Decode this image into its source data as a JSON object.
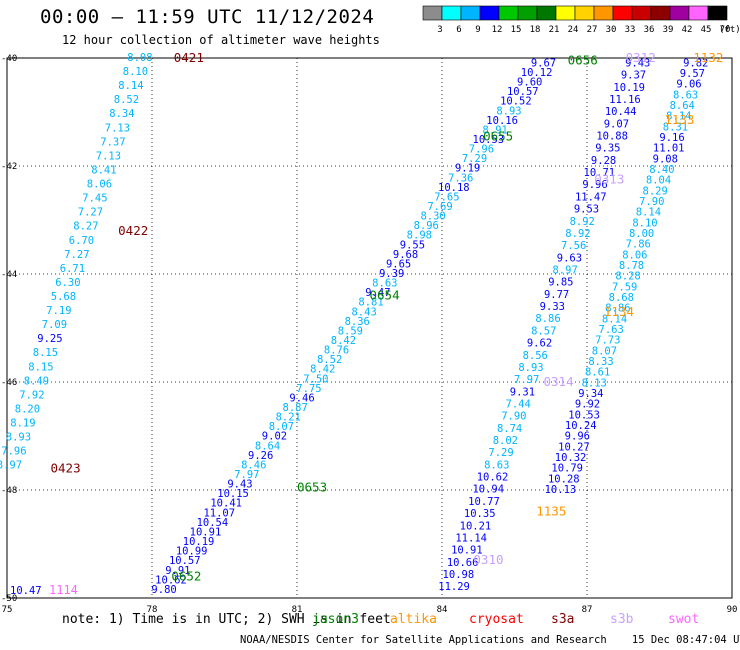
{
  "header": {
    "title": "00:00 – 11:59 UTC 11/12/2024",
    "subtitle": "12 hour collection of altimeter wave heights"
  },
  "legend": {
    "unit": "(ft)",
    "bins": [
      {
        "label": "3",
        "color": "#8c8c8c"
      },
      {
        "label": "6",
        "color": "#00ffff"
      },
      {
        "label": "9",
        "color": "#00b4ff"
      },
      {
        "label": "12",
        "color": "#0000ff"
      },
      {
        "label": "15",
        "color": "#00c800"
      },
      {
        "label": "18",
        "color": "#00a000"
      },
      {
        "label": "21",
        "color": "#007800"
      },
      {
        "label": "24",
        "color": "#ffff00"
      },
      {
        "label": "27",
        "color": "#ffd200"
      },
      {
        "label": "30",
        "color": "#ff9600"
      },
      {
        "label": "33",
        "color": "#ff0000"
      },
      {
        "label": "36",
        "color": "#c80000"
      },
      {
        "label": "39",
        "color": "#8c0000"
      },
      {
        "label": "42",
        "color": "#a000a0"
      },
      {
        "label": "45",
        "color": "#ff64ff"
      },
      {
        "label": "70",
        "color": "#000000"
      }
    ]
  },
  "map": {
    "lon_range": [
      75,
      90
    ],
    "lat_range": [
      -50,
      -40
    ],
    "x_ticks": [
      {
        "v": 75,
        "label": "75"
      },
      {
        "v": 78,
        "label": "78"
      },
      {
        "v": 81,
        "label": "81"
      },
      {
        "v": 84,
        "label": "84"
      },
      {
        "v": 87,
        "label": "87"
      },
      {
        "v": 90,
        "label": "90"
      }
    ],
    "y_ticks": [
      {
        "v": -40,
        "label": "-40"
      },
      {
        "v": -42,
        "label": "-42"
      },
      {
        "v": -44,
        "label": "-44"
      },
      {
        "v": -46,
        "label": "-46"
      },
      {
        "v": -48,
        "label": "-48"
      },
      {
        "v": -50,
        "label": "-50"
      }
    ],
    "colors": {
      "cyan": "#00b4ff",
      "blue": "#0000ff",
      "green": "#008000",
      "darkred": "#800000",
      "orange": "#ff9600",
      "pink": "#ff64ff",
      "lilac": "#c8a0ff"
    },
    "tracks": [
      {
        "name": "0421-0423",
        "lon": [
          77.75,
          75.05
        ],
        "lat": [
          -40.0,
          -47.55
        ],
        "start_lat": -40.0,
        "values": [
          "8.08",
          "8.10",
          "8.14",
          "8.52",
          "8.34",
          "7.13",
          "7.37",
          "7.13",
          "8.41",
          "8.06",
          "7.45",
          "7.27",
          "8.27",
          "6.70",
          "7.27",
          "6.71",
          "6.30",
          "5.68",
          "7.19",
          "7.09",
          "9.25",
          "8.15",
          "8.15",
          "8.49",
          "7.92",
          "8.20",
          "8.19",
          "8.93",
          "7.96",
          "8.97"
        ]
      },
      {
        "name": "0652-0656",
        "lon": [
          78.25,
          86.1
        ],
        "lat": [
          -49.85,
          -40.1
        ],
        "start_lat": -49.85,
        "values": [
          "9.80",
          "10.62",
          "9.91",
          "10.57",
          "10.99",
          "10.19",
          "10.91",
          "10.54",
          "11.07",
          "10.41",
          "10.15",
          "9.43",
          "7.97",
          "8.46",
          "9.26",
          "8.64",
          "9.02",
          "8.07",
          "8.21",
          "8.87",
          "9.46",
          "7.75",
          "7.50",
          "8.42",
          "8.52",
          "8.76",
          "8.42",
          "8.59",
          "8.36",
          "8.43",
          "8.81",
          "9.47",
          "8.63",
          "9.39",
          "9.65",
          "9.68",
          "9.55",
          "8.98",
          "8.96",
          "8.30",
          "7.69",
          "7.65",
          "10.18",
          "7.36",
          "9.19",
          "7.29",
          "7.96",
          "10.53",
          "8.91",
          "10.16",
          "8.93",
          "10.52",
          "10.57",
          "9.60",
          "10.12",
          "9.67"
        ]
      },
      {
        "name": "1131-1135",
        "lon": [
          88.05,
          84.25
        ],
        "lat": [
          -40.1,
          -49.8
        ],
        "start_lat": -40.1,
        "values": [
          "9.43",
          "9.37",
          "10.19",
          "11.16",
          "10.44",
          "9.07",
          "10.88",
          "9.35",
          "9.28",
          "10.71",
          "9.96",
          "11.47",
          "9.53",
          "8.92",
          "8.92",
          "7.56",
          "9.63",
          "8.97",
          "9.85",
          "9.77",
          "9.33",
          "8.86",
          "8.57",
          "9.62",
          "8.56",
          "8.93",
          "7.97",
          "9.31",
          "7.44",
          "7.90",
          "8.74",
          "8.02",
          "7.29",
          "8.63",
          "10.62",
          "10.94",
          "10.77",
          "10.35",
          "10.21",
          "11.14",
          "10.91",
          "10.66",
          "10.98",
          "11.29"
        ]
      },
      {
        "name": "1131-1135b",
        "lon": [
          89.25,
          86.45
        ],
        "lat": [
          -40.1,
          -48.0
        ],
        "start_lat": -40.1,
        "values": [
          "9.82",
          "9.57",
          "9.06",
          "8.63",
          "8.64",
          "8.14",
          "8.31",
          "9.16",
          "11.01",
          "9.08",
          "8.40",
          "8.04",
          "8.29",
          "7.90",
          "8.14",
          "8.10",
          "8.00",
          "7.86",
          "8.06",
          "8.78",
          "8.28",
          "7.59",
          "8.68",
          "8.86",
          "8.14",
          "7.63",
          "7.73",
          "8.07",
          "8.33",
          "8.61",
          "8.13",
          "9.34",
          "9.92",
          "10.53",
          "10.24",
          "9.96",
          "10.27",
          "10.32",
          "10.79",
          "10.28",
          "10.13"
        ]
      }
    ],
    "bottom_left_value": "10.47",
    "bottom_left_time": "1114",
    "time_labels": [
      {
        "t": "0421",
        "color": "darkred",
        "lon": 78.45,
        "lat": -40.0
      },
      {
        "t": "0422",
        "color": "darkred",
        "lon": 77.3,
        "lat": -43.2
      },
      {
        "t": "0423",
        "color": "darkred",
        "lon": 75.9,
        "lat": -47.6
      },
      {
        "t": "0652",
        "color": "green",
        "lon": 78.4,
        "lat": -49.6
      },
      {
        "t": "0653",
        "color": "green",
        "lon": 81.0,
        "lat": -47.95
      },
      {
        "t": "0654",
        "color": "green",
        "lon": 82.5,
        "lat": -44.4
      },
      {
        "t": "0655",
        "color": "green",
        "lon": 84.85,
        "lat": -41.45
      },
      {
        "t": "0656",
        "color": "green",
        "lon": 86.6,
        "lat": -40.05
      },
      {
        "t": "1132",
        "color": "orange",
        "lon": 89.2,
        "lat": -40.0
      },
      {
        "t": "1133",
        "color": "orange",
        "lon": 88.6,
        "lat": -41.15
      },
      {
        "t": "1134",
        "color": "orange",
        "lon": 87.35,
        "lat": -44.7
      },
      {
        "t": "1135",
        "color": "orange",
        "lon": 85.95,
        "lat": -48.4
      },
      {
        "t": "0314",
        "color": "lilac",
        "lon": 86.1,
        "lat": -46.0
      },
      {
        "t": "0313",
        "color": "lilac",
        "lon": 87.15,
        "lat": -42.25
      },
      {
        "t": "0310",
        "color": "lilac",
        "lon": 84.65,
        "lat": -49.3
      },
      {
        "t": "0312",
        "color": "lilac",
        "lon": 87.8,
        "lat": -40.0
      }
    ]
  },
  "footer": {
    "note": "note: 1) Time is in UTC; 2) SWH is in feet",
    "satellites": [
      {
        "name": "jason3",
        "color": "#008000"
      },
      {
        "name": "altika",
        "color": "#ff9600"
      },
      {
        "name": "cryosat",
        "color": "#ff0000"
      },
      {
        "name": "s3a",
        "color": "#800000"
      },
      {
        "name": "s3b",
        "color": "#c8a0ff"
      },
      {
        "name": "swot",
        "color": "#ff64ff"
      }
    ],
    "credit": "NOAA/NESDIS Center for Satellite Applications and Research    15 Dec 08:47:04 UTC 2024"
  }
}
